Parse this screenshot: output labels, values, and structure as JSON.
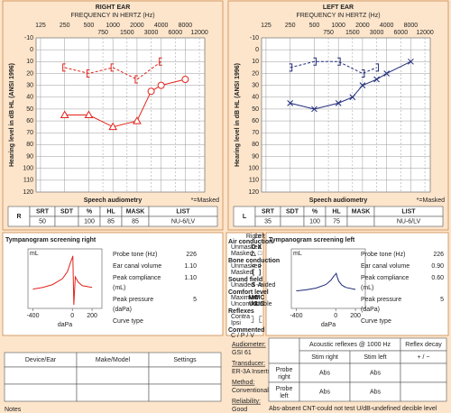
{
  "chart_data": [
    {
      "type": "audiogram",
      "title": "RIGHT EAR",
      "subtitle": "FREQUENCY IN HERTZ (Hz)",
      "y_label": "Hearing level in dB HL (ANSI 1996)",
      "x_scale": "log",
      "xlim": [
        110,
        14000
      ],
      "xticks": [
        125,
        250,
        500,
        1000,
        2000,
        4000,
        8000
      ],
      "xticks_minor": [
        750,
        1500,
        3000,
        6000,
        12000
      ],
      "ylim": [
        -10,
        120
      ],
      "yticks": [
        -10,
        0,
        10,
        20,
        30,
        40,
        50,
        60,
        70,
        80,
        90,
        100,
        110,
        120
      ],
      "y_inverted": true,
      "grid": true,
      "series": [
        {
          "color": "#e2231a",
          "line": "solid",
          "markers": [
            "triangle",
            "triangle",
            "triangle",
            "triangle",
            "circle",
            "circle",
            "circle"
          ],
          "x": [
            250,
            500,
            1000,
            2000,
            3000,
            4000,
            8000
          ],
          "values": [
            55,
            55,
            65,
            60,
            35,
            30,
            25
          ]
        },
        {
          "color": "#e2231a",
          "line": "dashed",
          "markers": [
            "[",
            "[",
            "[",
            "[",
            "["
          ],
          "x": [
            250,
            500,
            1000,
            2000,
            4000
          ],
          "values": [
            15,
            20,
            15,
            25,
            10
          ]
        }
      ]
    },
    {
      "type": "audiogram",
      "title": "LEFT EAR",
      "subtitle": "FREQUENCY IN HERTZ (Hz)",
      "y_label": "Hearing level in dB HL (ANSI 1996)",
      "x_scale": "log",
      "xlim": [
        110,
        14000
      ],
      "xticks": [
        125,
        250,
        500,
        1000,
        2000,
        4000,
        8000
      ],
      "xticks_minor": [
        750,
        1500,
        3000,
        6000,
        12000
      ],
      "ylim": [
        -10,
        120
      ],
      "yticks": [
        -10,
        0,
        10,
        20,
        30,
        40,
        50,
        60,
        70,
        80,
        90,
        100,
        110,
        120
      ],
      "y_inverted": true,
      "grid": true,
      "series": [
        {
          "color": "#1f2a7a",
          "line": "solid",
          "markers": [
            "x",
            "x",
            "x",
            "x",
            "x",
            "x",
            "x",
            "x"
          ],
          "x": [
            250,
            500,
            1000,
            1500,
            2000,
            3000,
            4000,
            8000
          ],
          "values": [
            45,
            50,
            45,
            40,
            30,
            25,
            20,
            10
          ]
        },
        {
          "color": "#1f2a7a",
          "line": "dashed",
          "markers": [
            "]",
            "]",
            "]",
            "]",
            "]"
          ],
          "x": [
            250,
            500,
            1000,
            2000,
            3000
          ],
          "values": [
            15,
            10,
            10,
            20,
            15
          ]
        }
      ]
    },
    {
      "type": "tympanogram",
      "title": "Tympanogram screening right",
      "y_label": "mL",
      "x_label": "daPa",
      "xlim": [
        -450,
        300
      ],
      "xticks": [
        -400,
        0,
        200
      ],
      "ylim": [
        -0.4,
        1.3
      ],
      "color": "#e2231a",
      "x": [
        -400,
        -300,
        -200,
        -100,
        -50,
        -20,
        0,
        5,
        15,
        30,
        60,
        100,
        200
      ],
      "values": [
        0.15,
        0.2,
        0.28,
        0.45,
        0.65,
        0.9,
        1.05,
        1.1,
        -0.3,
        0.5,
        0.35,
        0.25,
        0.2
      ]
    },
    {
      "type": "tympanogram",
      "title": "Tympanogram screening left",
      "y_label": "mL",
      "x_label": "daPa",
      "xlim": [
        -450,
        300
      ],
      "xticks": [
        -400,
        0,
        200
      ],
      "ylim": [
        -0.4,
        1.3
      ],
      "color": "#1f2a7a",
      "x": [
        -400,
        -300,
        -200,
        -100,
        -50,
        -20,
        0,
        5,
        15,
        30,
        60,
        100,
        200
      ],
      "values": [
        0.1,
        0.13,
        0.18,
        0.28,
        0.4,
        0.52,
        0.58,
        0.6,
        0.5,
        0.38,
        0.27,
        0.2,
        0.14
      ]
    }
  ],
  "speech_title": "Speech audiometry",
  "masked_note": "*=Masked",
  "speech_headers": [
    "SRT",
    "SDT",
    "%",
    "HL",
    "MASK",
    "LIST"
  ],
  "speech": [
    {
      "ear": "R",
      "values": [
        "50",
        null,
        "100",
        "85",
        "85",
        "NU-6/LV"
      ]
    },
    {
      "ear": "L",
      "values": [
        "35",
        null,
        "100",
        "75",
        null,
        "NU-6/LV"
      ]
    }
  ],
  "tymp_info": [
    [
      {
        "label": [
          "Probe tone (Hz)"
        ],
        "value": "226"
      },
      {
        "label": [
          "Ear canal volume"
        ],
        "value": "1.10"
      },
      {
        "label": [
          "Peak compliance",
          "(mL)"
        ],
        "value": "1.10"
      },
      {
        "label": [
          "Peak pressure",
          "(daPa)"
        ],
        "value": "5"
      },
      {
        "label": [
          "Curve type"
        ],
        "value": null
      }
    ],
    [
      {
        "label": [
          "Probe tone (Hz)"
        ],
        "value": "226"
      },
      {
        "label": [
          "Ear canal volume"
        ],
        "value": "0.90"
      },
      {
        "label": [
          "Peak compliance",
          "(mL)"
        ],
        "value": "0.60"
      },
      {
        "label": [
          "Peak pressure",
          "(daPa)"
        ],
        "value": "5"
      },
      {
        "label": [
          "Curve type"
        ],
        "value": null
      }
    ]
  ],
  "symbol_key": {
    "headers": [
      "Right",
      "Left"
    ],
    "groups": [
      {
        "title": "Air conduction",
        "rows": [
          {
            "label": "Unmasked",
            "right": "O",
            "left": "X"
          },
          {
            "label": "Masked",
            "right": "△",
            "left": "□"
          }
        ]
      },
      {
        "title": "Bone conduction",
        "rows": [
          {
            "label": "Unmasked",
            "right": "<",
            "left": ">"
          },
          {
            "label": "Masked",
            "right": "[",
            "left": "]"
          }
        ]
      },
      {
        "title": "Sound field",
        "rows": [
          {
            "label": "Unaided - aided",
            "right": "S",
            "left": "A"
          }
        ]
      },
      {
        "title": "Comfort level",
        "rows": [
          {
            "label": "Maximum",
            "right": "MC",
            "left": "MC"
          },
          {
            "label": "Uncomfortable",
            "right": "UC",
            "left": "UC"
          }
        ]
      },
      {
        "title": "Reflexes",
        "rows": [
          {
            "label": "Contra",
            "right": "┐",
            "left": "┌"
          },
          {
            "label": "Ipsi",
            "right": "┘",
            "left": "└"
          }
        ]
      },
      {
        "title": "Commented",
        "rows": [
          {
            "label": "C / P / V",
            "right": null,
            "left": null
          }
        ]
      }
    ]
  },
  "devices": {
    "headers": [
      "Device/Ear",
      "Make/Model",
      "Settings"
    ]
  },
  "notes": "Notes",
  "equipment": [
    {
      "label": "Audiometer:",
      "value": "GSI 61"
    },
    {
      "label": "Transducer:",
      "value": "ER-3A Inserts"
    },
    {
      "label": "Method:",
      "value": "Conventional"
    },
    {
      "label": "Reliability:",
      "value": "Good"
    }
  ],
  "reflexes": {
    "title": "Acoustic reflexes @ 1000 Hz",
    "decay_title": "Reflex decay",
    "stim": [
      "Stim right",
      "Stim left"
    ],
    "decay_sign": "+ / −",
    "rows": [
      {
        "label": [
          "Probe",
          "right"
        ],
        "values": [
          "Abs",
          "Abs"
        ]
      },
      {
        "label": [
          "Probe",
          "left"
        ],
        "values": [
          "Abs",
          "Abs"
        ]
      }
    ]
  },
  "footnote": "Abs-absent CNT-could not test U/dB-undefined decible level"
}
